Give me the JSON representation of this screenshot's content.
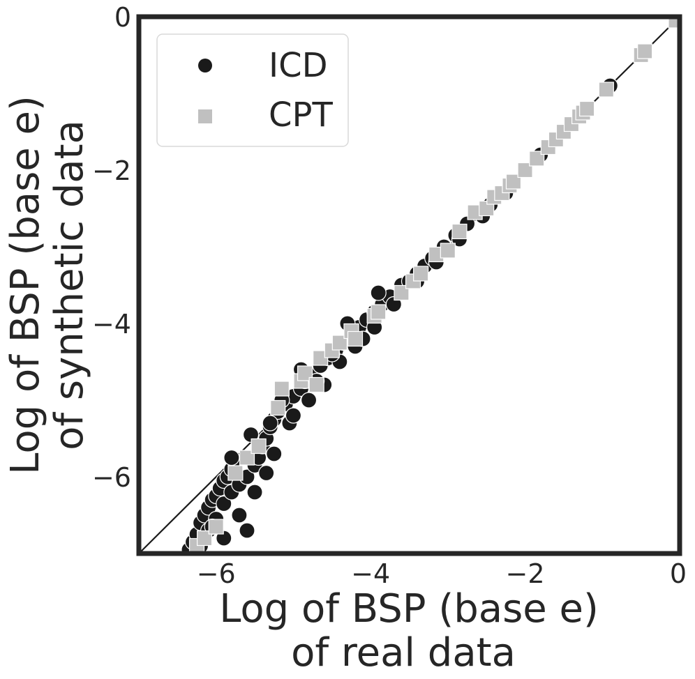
{
  "chart_data": {
    "type": "scatter",
    "xlabel_lines": [
      "Log of BSP (base e)",
      "of real data"
    ],
    "ylabel_lines": [
      "Log of BSP (base e)",
      "of synthetic data"
    ],
    "xlim": [
      -7,
      0
    ],
    "ylim": [
      -7,
      0
    ],
    "xticks": [
      -6,
      -4,
      -2,
      0
    ],
    "yticks": [
      -6,
      -4,
      -2,
      0
    ],
    "x_tick_labels": [
      "−6",
      "−4",
      "−2",
      "0"
    ],
    "y_tick_labels": [
      "−6",
      "−4",
      "−2",
      "0"
    ],
    "grid": false,
    "legend_position": "top-left",
    "reference_line": {
      "from": [
        -7,
        -7
      ],
      "to": [
        0,
        0
      ],
      "color": "#1a1a1a"
    },
    "series": [
      {
        "name": "ICD",
        "marker": "circle",
        "color": "#1a1a1a",
        "points": [
          [
            -6.35,
            -6.95
          ],
          [
            -6.3,
            -6.85
          ],
          [
            -6.25,
            -6.75
          ],
          [
            -6.2,
            -6.6
          ],
          [
            -6.15,
            -6.5
          ],
          [
            -6.1,
            -6.4
          ],
          [
            -6.05,
            -6.3
          ],
          [
            -6.0,
            -6.25
          ],
          [
            -5.95,
            -6.15
          ],
          [
            -5.9,
            -6.05
          ],
          [
            -5.85,
            -6.0
          ],
          [
            -5.8,
            -5.9
          ],
          [
            -5.75,
            -5.8
          ],
          [
            -6.2,
            -6.9
          ],
          [
            -6.1,
            -6.7
          ],
          [
            -6.0,
            -6.55
          ],
          [
            -5.9,
            -6.35
          ],
          [
            -5.8,
            -6.2
          ],
          [
            -5.7,
            -6.1
          ],
          [
            -5.6,
            -6.0
          ],
          [
            -5.5,
            -5.85
          ],
          [
            -5.45,
            -5.75
          ],
          [
            -5.4,
            -5.6
          ],
          [
            -5.35,
            -5.5
          ],
          [
            -5.3,
            -5.35
          ],
          [
            -5.25,
            -5.25
          ],
          [
            -5.2,
            -5.15
          ],
          [
            -5.1,
            -5.05
          ],
          [
            -5.0,
            -4.95
          ],
          [
            -4.9,
            -4.85
          ],
          [
            -4.85,
            -4.75
          ],
          [
            -4.75,
            -4.65
          ],
          [
            -4.65,
            -4.55
          ],
          [
            -4.55,
            -4.45
          ],
          [
            -4.45,
            -4.35
          ],
          [
            -4.35,
            -4.25
          ],
          [
            -4.25,
            -4.15
          ],
          [
            -4.15,
            -4.05
          ],
          [
            -4.05,
            -3.95
          ],
          [
            -3.95,
            -3.85
          ],
          [
            -3.85,
            -3.75
          ],
          [
            -3.75,
            -3.65
          ],
          [
            -3.6,
            -3.5
          ],
          [
            -3.5,
            -3.45
          ],
          [
            -3.4,
            -3.35
          ],
          [
            -3.3,
            -3.25
          ],
          [
            -3.2,
            -3.15
          ],
          [
            -3.05,
            -3.0
          ],
          [
            -2.9,
            -2.85
          ],
          [
            -2.75,
            -2.7
          ],
          [
            -2.6,
            -2.55
          ],
          [
            -2.45,
            -2.45
          ],
          [
            -2.3,
            -2.3
          ],
          [
            -2.15,
            -2.15
          ],
          [
            -2.0,
            -2.0
          ],
          [
            -1.8,
            -1.8
          ],
          [
            -1.6,
            -1.6
          ],
          [
            -1.4,
            -1.4
          ],
          [
            -1.25,
            -1.25
          ],
          [
            -0.9,
            -0.9
          ],
          [
            -5.8,
            -5.75
          ],
          [
            -5.15,
            -5.0
          ],
          [
            -4.9,
            -4.6
          ],
          [
            -4.3,
            -4.0
          ],
          [
            -3.9,
            -3.6
          ],
          [
            -5.6,
            -6.7
          ],
          [
            -5.9,
            -6.8
          ],
          [
            -6.05,
            -6.65
          ],
          [
            -5.7,
            -6.5
          ],
          [
            -5.5,
            -6.2
          ],
          [
            -5.35,
            -5.95
          ],
          [
            -5.25,
            -5.7
          ],
          [
            -5.05,
            -5.3
          ],
          [
            -4.8,
            -5.0
          ],
          [
            -4.6,
            -4.8
          ],
          [
            -4.4,
            -4.5
          ],
          [
            -4.2,
            -4.3
          ],
          [
            -3.95,
            -4.05
          ],
          [
            -3.7,
            -3.75
          ],
          [
            -3.4,
            -3.45
          ],
          [
            -3.15,
            -3.2
          ],
          [
            -2.85,
            -2.9
          ],
          [
            -2.55,
            -2.6
          ],
          [
            -2.25,
            -2.3
          ],
          [
            -5.55,
            -5.45
          ],
          [
            -5.3,
            -5.3
          ],
          [
            -5.0,
            -5.2
          ],
          [
            -4.7,
            -4.75
          ],
          [
            -4.5,
            -4.4
          ],
          [
            -4.1,
            -4.2
          ]
        ]
      },
      {
        "name": "CPT",
        "marker": "square",
        "color": "#c0c0c0",
        "points": [
          [
            -6.25,
            -6.9
          ],
          [
            -6.15,
            -6.8
          ],
          [
            -6.0,
            -6.65
          ],
          [
            -5.75,
            -5.95
          ],
          [
            -5.6,
            -5.75
          ],
          [
            -5.45,
            -5.6
          ],
          [
            -5.2,
            -5.1
          ],
          [
            -5.15,
            -4.85
          ],
          [
            -4.9,
            -4.75
          ],
          [
            -4.85,
            -4.65
          ],
          [
            -4.7,
            -4.8
          ],
          [
            -4.65,
            -4.45
          ],
          [
            -4.5,
            -4.35
          ],
          [
            -4.4,
            -4.25
          ],
          [
            -4.25,
            -4.1
          ],
          [
            -4.2,
            -4.2
          ],
          [
            -3.95,
            -3.9
          ],
          [
            -3.9,
            -3.85
          ],
          [
            -3.6,
            -3.6
          ],
          [
            -3.45,
            -3.45
          ],
          [
            -3.35,
            -3.35
          ],
          [
            -3.15,
            -3.1
          ],
          [
            -3.0,
            -3.05
          ],
          [
            -2.85,
            -2.8
          ],
          [
            -2.65,
            -2.55
          ],
          [
            -2.5,
            -2.5
          ],
          [
            -2.4,
            -2.35
          ],
          [
            -2.3,
            -2.3
          ],
          [
            -2.2,
            -2.2
          ],
          [
            -2.15,
            -2.15
          ],
          [
            -2.0,
            -2.0
          ],
          [
            -1.85,
            -1.85
          ],
          [
            -1.7,
            -1.7
          ],
          [
            -1.6,
            -1.6
          ],
          [
            -1.5,
            -1.5
          ],
          [
            -1.4,
            -1.4
          ],
          [
            -1.3,
            -1.3
          ],
          [
            -1.25,
            -1.25
          ],
          [
            -1.2,
            -1.2
          ],
          [
            -0.95,
            -0.95
          ],
          [
            -0.5,
            -0.5
          ],
          [
            -0.45,
            -0.45
          ],
          [
            -0.05,
            -0.05
          ]
        ]
      }
    ]
  }
}
